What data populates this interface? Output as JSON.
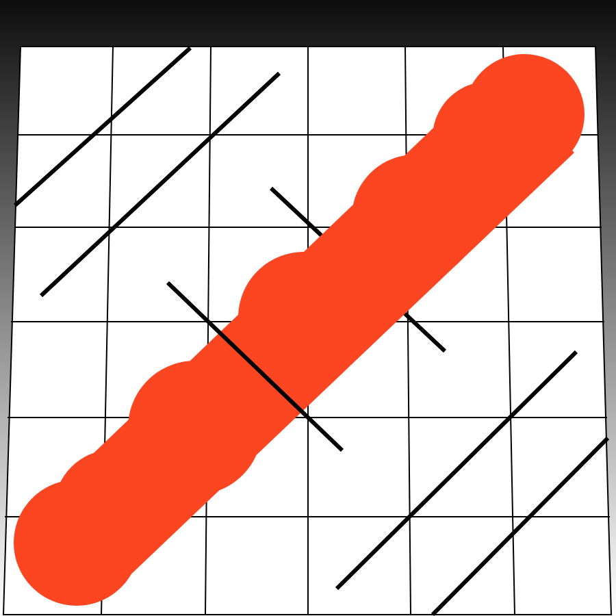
{
  "colors": {
    "background_top": "#0d0d0d",
    "background_bottom": "#ffffff",
    "grid_fill": "#ffffff",
    "grid_line": "#000000",
    "stroke": "#000000",
    "blob": "#fc4622"
  },
  "grid": {
    "columns": 6,
    "rows": 6
  },
  "icons": {
    "blob": "orange-wavy-blob-shape",
    "lines": "diagonal-black-line"
  }
}
